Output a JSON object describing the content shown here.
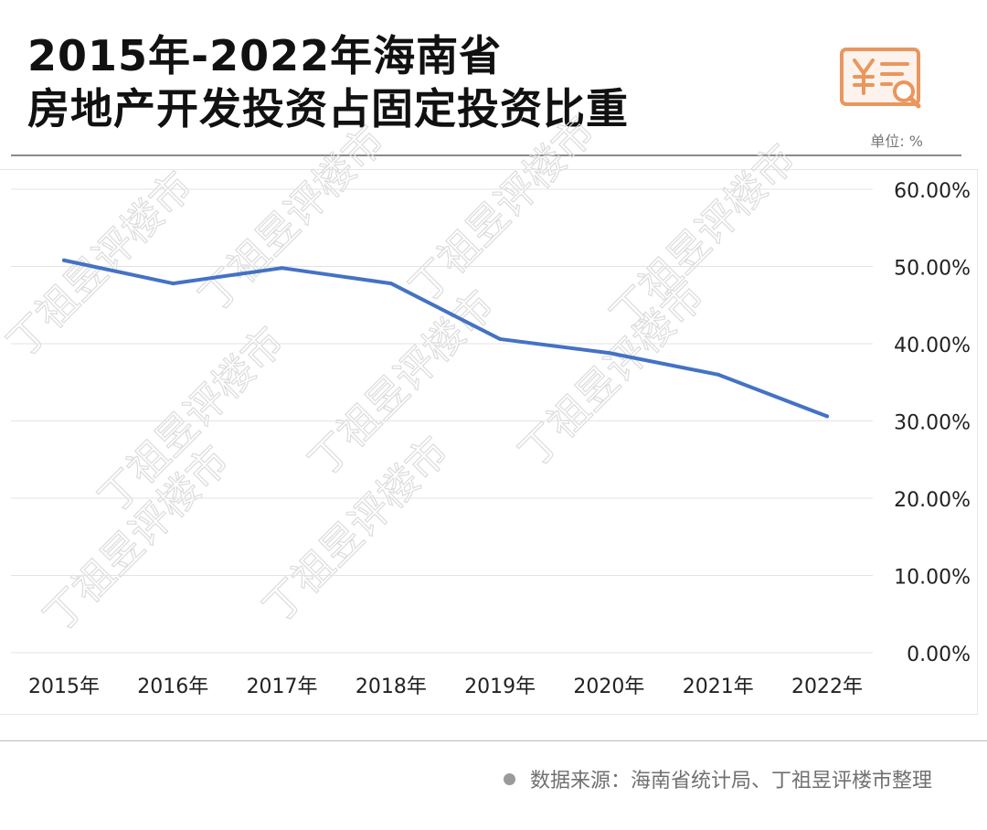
{
  "header": {
    "title_line1": "2015年-2022年海南省",
    "title_line2": "房地产开发投资占固定投资比重",
    "unit": "单位: %",
    "icon": "yuan-invoice-search-icon",
    "accent_color": "#E9965F"
  },
  "chart_data": {
    "type": "line",
    "title": "2015年-2022年海南省房地产开发投资占固定投资比重",
    "xlabel": "",
    "ylabel": "",
    "ylim": [
      0,
      60
    ],
    "yticks": [
      0,
      10,
      20,
      30,
      40,
      50,
      60
    ],
    "ytick_labels": [
      "0.00%",
      "10.00%",
      "20.00%",
      "30.00%",
      "40.00%",
      "50.00%",
      "60.00%"
    ],
    "yaxis_position": "right",
    "grid": true,
    "legend": "none",
    "categories": [
      "2015年",
      "2016年",
      "2017年",
      "2018年",
      "2019年",
      "2020年",
      "2021年",
      "2022年"
    ],
    "series": [
      {
        "name": "房地产开发投资占固定投资比重",
        "color": "#4472C4",
        "values": [
          50.8,
          47.8,
          49.8,
          47.8,
          40.6,
          38.8,
          36.0,
          30.6
        ]
      }
    ]
  },
  "watermark": {
    "text": "丁祖昱评楼市",
    "color": "#dcdcdc"
  },
  "footer": {
    "source": "数据来源：海南省统计局、丁祖昱评楼市整理"
  }
}
